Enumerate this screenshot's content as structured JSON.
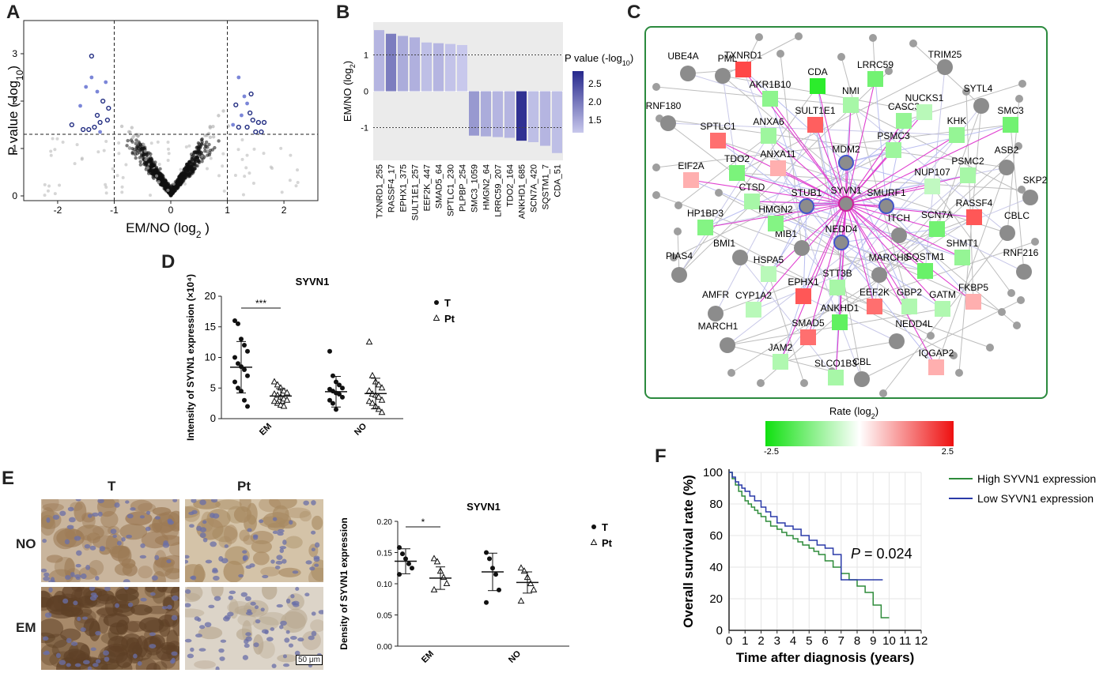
{
  "panels": {
    "A": "A",
    "B": "B",
    "C": "C",
    "D": "D",
    "E": "E",
    "F": "F"
  },
  "chart_data": [
    {
      "type": "scatter",
      "id": "A",
      "xlabel": "EM/NO (log",
      "xlabel_sub": "2",
      "xlabel_end": " )",
      "ylabel": "P value (-log",
      "ylabel_sub": "10",
      "ylabel_end": ")",
      "xlim": [
        -2.6,
        2.6
      ],
      "ylim": [
        -0.1,
        3.7
      ],
      "xticks": [
        -2,
        -1,
        0,
        1,
        2
      ],
      "yticks": [
        0,
        1,
        2,
        3
      ],
      "vlines": [
        -1,
        1
      ],
      "hline": 1.3,
      "highlight_circles": [
        [
          -1.4,
          2.95
        ],
        [
          -1.75,
          1.5
        ],
        [
          -1.55,
          1.4
        ],
        [
          -1.45,
          1.4
        ],
        [
          -1.35,
          1.45
        ],
        [
          -1.3,
          1.7
        ],
        [
          -1.25,
          1.55
        ],
        [
          -1.2,
          2.0
        ],
        [
          -1.12,
          1.6
        ],
        [
          -1.1,
          1.85
        ],
        [
          1.15,
          1.92
        ],
        [
          1.2,
          1.45
        ],
        [
          1.35,
          1.45
        ],
        [
          1.4,
          1.75
        ],
        [
          1.45,
          1.6
        ],
        [
          1.5,
          1.35
        ],
        [
          1.55,
          1.55
        ],
        [
          1.6,
          1.35
        ],
        [
          1.65,
          1.55
        ],
        [
          1.42,
          2.15
        ]
      ],
      "highlight_dots": [
        [
          -1.5,
          2.3
        ],
        [
          -1.4,
          2.5
        ],
        [
          -1.3,
          2.2
        ],
        [
          -1.6,
          1.9
        ],
        [
          -1.15,
          2.4
        ],
        [
          -1.25,
          1.35
        ],
        [
          1.2,
          2.5
        ],
        [
          1.3,
          2.1
        ],
        [
          1.25,
          1.7
        ],
        [
          1.1,
          1.5
        ],
        [
          1.35,
          1.95
        ]
      ]
    },
    {
      "type": "bar",
      "id": "B",
      "categories": [
        "TXNRD1_255",
        "RASSF4_17",
        "EPHX1_375",
        "SULT1E1_257",
        "EEF2K_447",
        "SMAD5_64",
        "SPTLC1_230",
        "PLPBP_254",
        "SMC3_1059",
        "HMGN2_64",
        "LRRC59_207",
        "TDO2_164",
        "ANKHD1_685",
        "SCN7A_420",
        "SQSTM1_7",
        "CDA_51"
      ],
      "values": [
        1.68,
        1.58,
        1.52,
        1.48,
        1.34,
        1.32,
        1.3,
        1.27,
        -1.22,
        -1.24,
        -1.26,
        -1.28,
        -1.36,
        -1.4,
        -1.5,
        -1.7
      ],
      "pvalues": [
        1.5,
        2.1,
        1.6,
        1.55,
        1.4,
        1.5,
        1.35,
        1.3,
        1.8,
        1.6,
        1.5,
        1.5,
        2.9,
        1.4,
        1.5,
        1.4
      ],
      "ylabel": "EM/NO (log",
      "ylabel_sub": "2",
      "ylabel_end": ")",
      "ylim": [
        -1.9,
        1.9
      ],
      "yticks": [
        -1,
        0,
        1
      ],
      "legend_title": "P value (-log",
      "legend_sub": "10",
      "legend_end": ")",
      "legend_ticks": [
        "2.5",
        "2.0",
        "1.5"
      ]
    },
    {
      "type": "scatter",
      "id": "D",
      "title": "SYVN1",
      "ylabel": "Intensity of SYVN1 expression (×10⁴)",
      "ylim": [
        0,
        20
      ],
      "yticks": [
        0,
        5,
        10,
        15,
        20
      ],
      "categories": [
        "EM",
        "NO"
      ],
      "series": [
        {
          "name": "T",
          "values": [
            [
              16,
              15.5,
              13,
              12,
              11,
              10,
              9,
              8.5,
              8,
              7,
              6,
              5,
              4.5,
              3,
              2
            ],
            [
              11,
              7,
              6,
              5.5,
              5,
              4.8,
              4.5,
              4.2,
              4,
              3.5,
              3,
              2.5,
              1.5
            ]
          ],
          "mean": [
            8.4,
            4.4
          ],
          "sd": [
            4.2,
            2.5
          ]
        },
        {
          "name": "Pt",
          "values": [
            [
              6,
              5.5,
              5,
              4.5,
              4.2,
              4,
              3.8,
              3.5,
              3.2,
              3,
              2.8,
              2.5,
              2.2,
              2
            ],
            [
              12.5,
              7,
              6,
              5.5,
              5,
              4.5,
              4,
              3.8,
              3.5,
              3,
              2.8,
              2.5,
              2,
              1.5,
              1
            ]
          ],
          "mean": [
            3.7,
            4.1
          ],
          "sd": [
            1.2,
            2.5
          ]
        }
      ],
      "sig": "***"
    },
    {
      "type": "scatter",
      "id": "E",
      "title": "SYVN1",
      "ylabel": "Density of SYVN1 expression",
      "ylim": [
        0,
        0.2
      ],
      "yticks": [
        "0.00",
        "0.05",
        "0.10",
        "0.15",
        "0.20"
      ],
      "categories": [
        "EM",
        "NO"
      ],
      "series": [
        {
          "name": "T",
          "values": [
            [
              0.158,
              0.148,
              0.14,
              0.132,
              0.125,
              0.115
            ],
            [
              0.15,
              0.14,
              0.125,
              0.115,
              0.09,
              0.07
            ]
          ],
          "mean": [
            0.136,
            0.119
          ],
          "sd": [
            0.02,
            0.03
          ]
        },
        {
          "name": "Pt",
          "values": [
            [
              0.14,
              0.135,
              0.12,
              0.11,
              0.1,
              0.09
            ],
            [
              0.125,
              0.12,
              0.11,
              0.1,
              0.09,
              0.072
            ]
          ],
          "mean": [
            0.109,
            0.102
          ],
          "sd": [
            0.018,
            0.017
          ]
        }
      ],
      "sig": "*"
    },
    {
      "type": "line",
      "id": "F",
      "xlabel": "Time after diagnosis (years)",
      "ylabel": "Overall survival rate (%)",
      "xlim": [
        0,
        12
      ],
      "ylim": [
        0,
        100
      ],
      "xticks": [
        0,
        1,
        2,
        3,
        4,
        5,
        6,
        7,
        8,
        9,
        10,
        11,
        12
      ],
      "yticks": [
        0,
        20,
        40,
        60,
        80,
        100
      ],
      "series": [
        {
          "name": "High SYVN1 expression",
          "color": "#2e8b3a",
          "x": [
            0,
            0.2,
            0.4,
            0.6,
            0.8,
            1,
            1.2,
            1.4,
            1.6,
            1.8,
            2,
            2.3,
            2.6,
            3,
            3.3,
            3.6,
            4,
            4.3,
            4.6,
            5,
            5.3,
            5.6,
            6,
            6.5,
            7,
            7.5,
            8,
            8.5,
            9,
            9.5,
            10
          ],
          "y": [
            100,
            96,
            92,
            88,
            85,
            82,
            80,
            78,
            76,
            74,
            72,
            69,
            66,
            64,
            62,
            60,
            58,
            56,
            54,
            52,
            50,
            48,
            44,
            40,
            36,
            32,
            28,
            24,
            16,
            8,
            8
          ]
        },
        {
          "name": "Low SYVN1 expression",
          "color": "#2a3aa8",
          "x": [
            0,
            0.2,
            0.4,
            0.6,
            0.8,
            1,
            1.3,
            1.6,
            2,
            2.3,
            2.6,
            3,
            3.5,
            4,
            4.5,
            5,
            5.5,
            6,
            6.5,
            6.9,
            7,
            7.5,
            8,
            8.5,
            9,
            9.6
          ],
          "y": [
            100,
            97,
            94,
            92,
            90,
            88,
            85,
            82,
            78,
            75,
            72,
            68,
            66,
            64,
            60,
            57,
            54,
            52,
            48,
            48,
            32,
            32,
            32,
            32,
            32,
            32
          ]
        }
      ],
      "annotation": "P",
      "annotation_rest": " = 0.024"
    }
  ],
  "network": {
    "center": "SYVN1",
    "hubs": [
      "MDM2",
      "STUB1",
      "SMURF1",
      "NEDD4"
    ],
    "squares": [
      {
        "label": "TXNRD1",
        "rate": 2.3
      },
      {
        "label": "CDA",
        "rate": -2.4
      },
      {
        "label": "LRRC59",
        "rate": -1.6
      },
      {
        "label": "AKR1B10",
        "rate": -1.3
      },
      {
        "label": "NMI",
        "rate": -1.0
      },
      {
        "label": "SULT1E1",
        "rate": 2.0
      },
      {
        "label": "CASC3",
        "rate": -1.2
      },
      {
        "label": "NUCKS1",
        "rate": -0.8
      },
      {
        "label": "SMC3",
        "rate": -1.6
      },
      {
        "label": "KHK",
        "rate": -1.2
      },
      {
        "label": "ANXA6",
        "rate": -1.1
      },
      {
        "label": "SPTLC1",
        "rate": 1.8
      },
      {
        "label": "PSMC3",
        "rate": -1.1
      },
      {
        "label": "ANXA11",
        "rate": 1.0
      },
      {
        "label": "TDO2",
        "rate": -1.5
      },
      {
        "label": "PSMC2",
        "rate": -1.0
      },
      {
        "label": "NUP107",
        "rate": -0.7
      },
      {
        "label": "EIF2A",
        "rate": 1.0
      },
      {
        "label": "CTSD",
        "rate": -1.0
      },
      {
        "label": "HMGN2",
        "rate": -1.4
      },
      {
        "label": "HP1BP3",
        "rate": -1.4
      },
      {
        "label": "SCN7A",
        "rate": -1.6
      },
      {
        "label": "RASSF4",
        "rate": 2.1
      },
      {
        "label": "SHMT1",
        "rate": -1.2
      },
      {
        "label": "HSPA5",
        "rate": -0.8
      },
      {
        "label": "SQSTM1",
        "rate": -1.7
      },
      {
        "label": "STT3B",
        "rate": -1.0
      },
      {
        "label": "EPHX1",
        "rate": 2.1
      },
      {
        "label": "GBP2",
        "rate": -0.9
      },
      {
        "label": "GATM",
        "rate": -0.9
      },
      {
        "label": "FKBP5",
        "rate": 1.0
      },
      {
        "label": "CYP1A2",
        "rate": -0.8
      },
      {
        "label": "EEF2K",
        "rate": 1.8
      },
      {
        "label": "ANKHD1",
        "rate": -1.8
      },
      {
        "label": "SMAD5",
        "rate": 1.8
      },
      {
        "label": "IQGAP2",
        "rate": 1.0
      },
      {
        "label": "JAM2",
        "rate": -0.9
      },
      {
        "label": "SLCO1B3",
        "rate": -1.0
      }
    ],
    "grey_labels": [
      "UBE4A",
      "PML",
      "TRIM25",
      "SYTL4",
      "RNF180",
      "ASB2",
      "SKP2",
      "CBLC",
      "ITCH",
      "MIB1",
      "BMI1",
      "PIAS4",
      "RNF216",
      "MARCH8",
      "AMFR",
      "MARCH1",
      "NEDD4L",
      "CBL"
    ],
    "colorbar": {
      "title": "Rate (log",
      "sub": "2",
      "end": ")",
      "min": "-2.5",
      "max": "2.5"
    }
  },
  "micrographs": {
    "col_T": "T",
    "col_Pt": "Pt",
    "row_NO": "NO",
    "row_EM": "EM",
    "scalebar": "50 μm"
  }
}
